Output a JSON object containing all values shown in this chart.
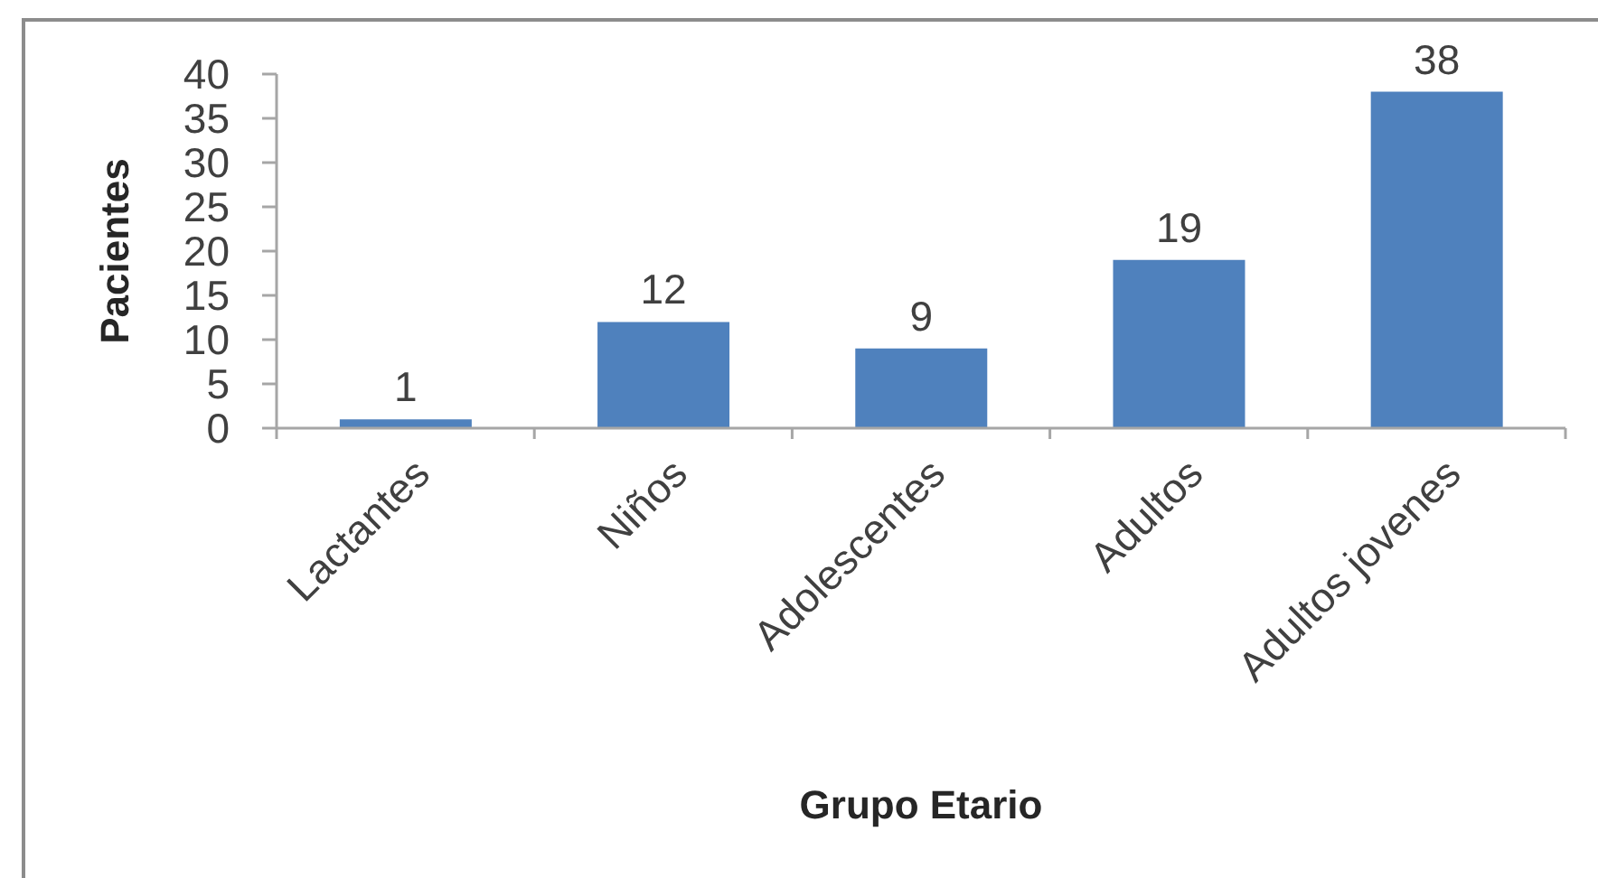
{
  "chart_data": {
    "type": "bar",
    "xlabel": "Grupo Etario",
    "ylabel": "Pacientes",
    "categories": [
      "Lactantes",
      "Niños",
      "Adolescentes",
      "Adultos",
      "Adultos jovenes"
    ],
    "values": [
      1,
      12,
      9,
      19,
      38
    ],
    "color": "#4f81bd",
    "ylim": [
      0,
      40
    ],
    "yticks": [
      0,
      5,
      10,
      15,
      20,
      25,
      30,
      35,
      40
    ],
    "data_labels": true
  }
}
